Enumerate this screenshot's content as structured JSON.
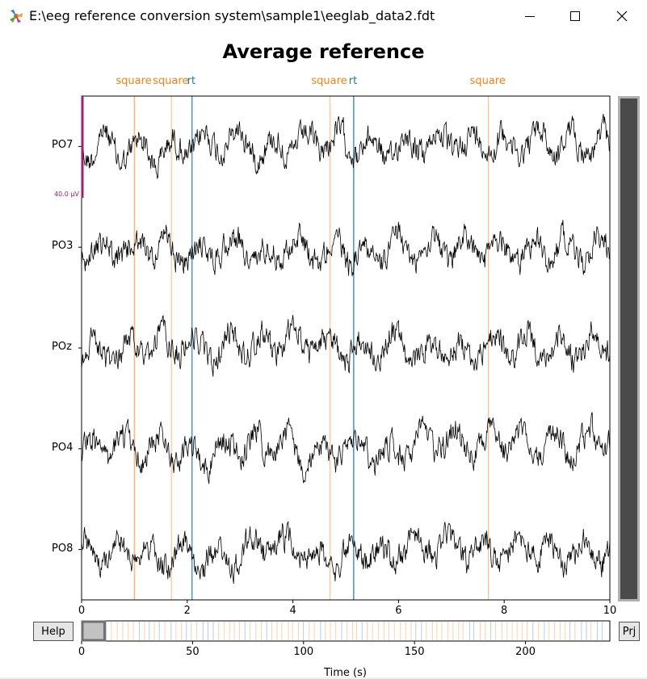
{
  "window": {
    "title": "E:\\eeg reference conversion system\\sample1\\eeglab_data2.fdt",
    "icon": "matplotlib-icon"
  },
  "figure": {
    "title": "Average reference",
    "scale_label": "40.0 µV",
    "help_label": "Help",
    "proj_label": "Prj",
    "xlabel": "Time (s)",
    "colors": {
      "square": "#ff7f0e",
      "rt": "#1f77b4",
      "scale": "#a0206f",
      "trace": "#000000"
    }
  },
  "chart_data": {
    "type": "line",
    "channels": [
      "PO7",
      "PO3",
      "POz",
      "PO4",
      "PO8"
    ],
    "xlim": [
      0,
      10
    ],
    "xticks": [
      0,
      2,
      4,
      6,
      8,
      10
    ],
    "events": [
      {
        "label": "square",
        "time": 1.0,
        "type": "square"
      },
      {
        "label": "square",
        "time": 1.7,
        "type": "square"
      },
      {
        "label": "rt",
        "time": 2.09,
        "type": "rt"
      },
      {
        "label": "square",
        "time": 4.7,
        "type": "square"
      },
      {
        "label": "rt",
        "time": 5.15,
        "type": "rt"
      },
      {
        "label": "square",
        "time": 7.7,
        "type": "square"
      }
    ],
    "overview": {
      "xlim": [
        0,
        238
      ],
      "xticks": [
        0,
        50,
        100,
        150,
        200
      ],
      "view_window": [
        0,
        10
      ]
    }
  }
}
